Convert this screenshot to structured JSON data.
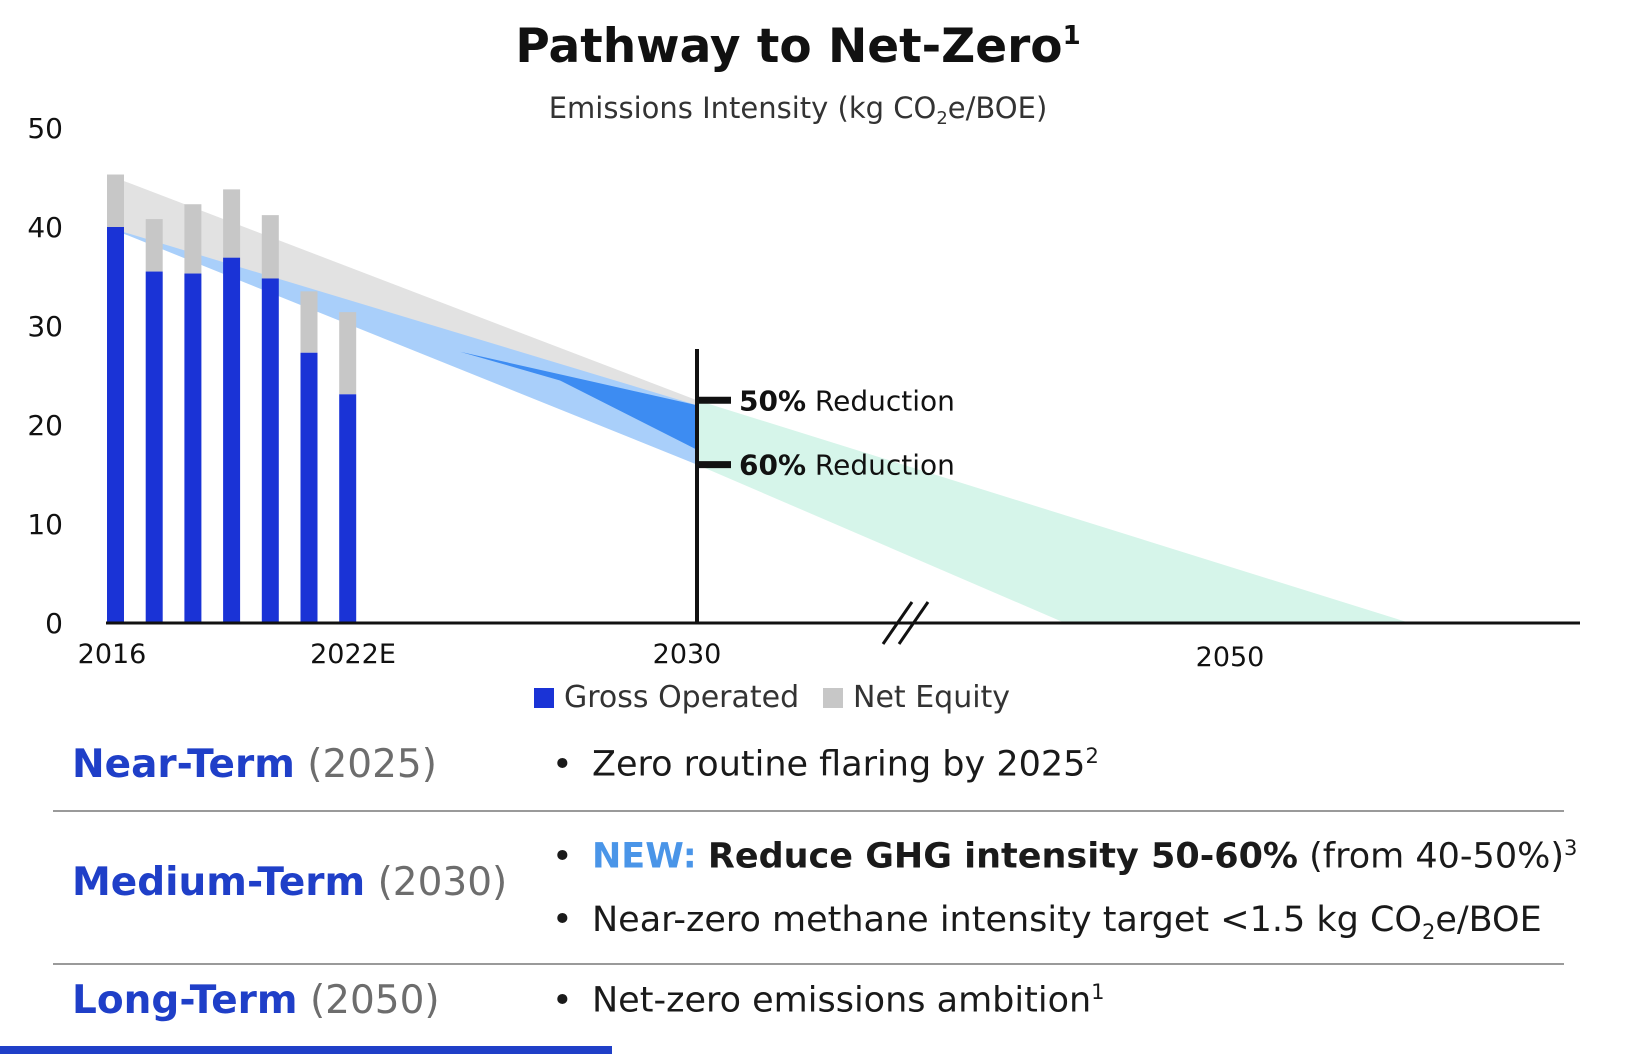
{
  "chart_data": {
    "type": "bar",
    "title": "Pathway to Net-Zero",
    "title_sup": "1",
    "subtitle_pre": "Emissions Intensity (kg CO",
    "subtitle_sub": "2",
    "subtitle_post": "e/BOE)",
    "ylim": [
      0,
      50
    ],
    "yticks": [
      0,
      10,
      20,
      30,
      40,
      50
    ],
    "xticks": [
      "2016",
      "2022E",
      "2030",
      "2050"
    ],
    "bars": [
      {
        "gross": 40.0,
        "net": 45.3
      },
      {
        "gross": 35.5,
        "net": 40.8
      },
      {
        "gross": 35.3,
        "net": 42.3
      },
      {
        "gross": 36.9,
        "net": 43.8
      },
      {
        "gross": 34.8,
        "net": 41.2
      },
      {
        "gross": 27.3,
        "net": 33.5
      },
      {
        "gross": 23.1,
        "net": 31.4
      }
    ],
    "legend": [
      {
        "label": "Gross Operated",
        "color": "#1a33d6"
      },
      {
        "label": "Net Equity",
        "color": "#c7c7c7"
      }
    ],
    "annotations": [
      "50% Reduction",
      "60% Reduction"
    ],
    "reduction_levels": [
      22.5,
      16.0
    ],
    "pathways": {
      "net_equity_band": {
        "start": [
          45.3,
          40.0
        ],
        "end": [
          22.5,
          21.5
        ]
      },
      "gross_operated_band": {
        "start": [
          40.0,
          40.0
        ],
        "end": [
          22.0,
          16.0
        ]
      },
      "long_term_band": {
        "start": [
          22.5,
          16.0
        ],
        "end": [
          0,
          0
        ]
      }
    },
    "colors": {
      "gross": "#1a33d6",
      "net": "#c7c7c7",
      "net_band": "#e2e2e2",
      "gross_band": "#a9cffa",
      "gross_band_dark": "#3d8cf2",
      "long_band": "#d6f5ea",
      "axis": "#111111"
    }
  },
  "targets": [
    {
      "term": "Near-Term",
      "year": "(2025)",
      "bullets": [
        {
          "text": "Zero routine flaring by 2025",
          "sup": "2"
        }
      ]
    },
    {
      "term": "Medium-Term",
      "year": "(2030)",
      "bullets": [
        {
          "new": "NEW:",
          "bold": "Reduce GHG intensity 50-60%",
          "text": "(from 40-50%)",
          "sup": "3"
        },
        {
          "pre": "Near-zero methane intensity target <1.5 kg CO",
          "sub": "2",
          "post": "e/BOE"
        }
      ]
    },
    {
      "term": "Long-Term",
      "year": "(2050)",
      "bullets": [
        {
          "text": "Net-zero emissions ambition",
          "sup": "1"
        }
      ]
    }
  ],
  "bullet_char": "•"
}
